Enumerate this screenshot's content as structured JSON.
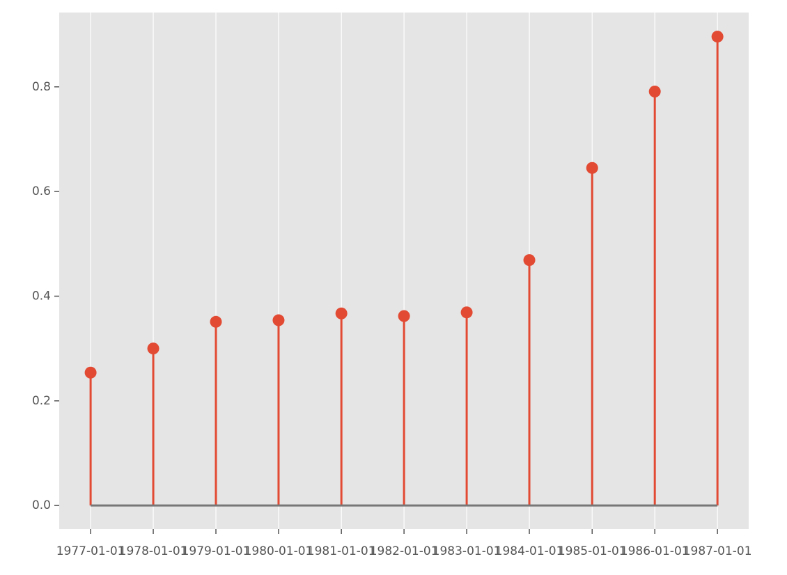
{
  "chart_data": {
    "type": "stem",
    "x": [
      "1977-01-01",
      "1978-01-01",
      "1979-01-01",
      "1980-01-01",
      "1981-01-01",
      "1982-01-01",
      "1983-01-01",
      "1984-01-01",
      "1985-01-01",
      "1986-01-01",
      "1987-01-01"
    ],
    "values": [
      0.254,
      0.3,
      0.351,
      0.354,
      0.367,
      0.362,
      0.369,
      0.469,
      0.645,
      0.791,
      0.896
    ],
    "color": "#e24a33",
    "baseline_color": "#777777",
    "xlim": [
      "1976-07-02",
      "1987-07-02"
    ],
    "xticks": [
      "1977-01-01",
      "1978-01-01",
      "1979-01-01",
      "1980-01-01",
      "1981-01-01",
      "1982-01-01",
      "1983-01-01",
      "1984-01-01",
      "1985-01-01",
      "1986-01-01",
      "1987-01-01"
    ],
    "ylim": [
      -0.045,
      0.942
    ],
    "yticks": [
      {
        "value": 0,
        "label": "0.0"
      },
      0.2,
      0.4,
      0.6,
      0.8
    ],
    "grid": "x"
  }
}
